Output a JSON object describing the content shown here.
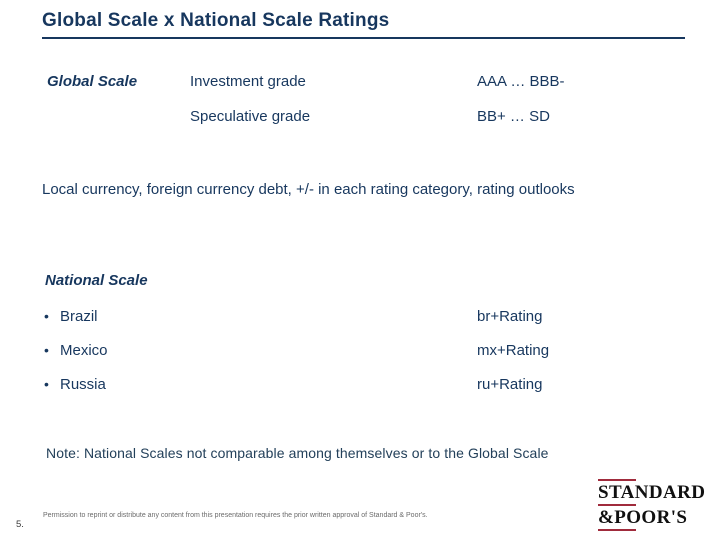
{
  "title": "Global Scale x National Scale Ratings",
  "bullet": "•",
  "global_scale": {
    "label": "Global Scale",
    "rows": [
      {
        "grade": "Investment grade",
        "range": "AAA … BBB-"
      },
      {
        "grade": "Speculative grade",
        "range": "BB+ … SD"
      }
    ]
  },
  "paragraph": "Local currency, foreign currency debt, +/- in each rating category, rating outlooks",
  "national_scale": {
    "label": "National Scale",
    "items": [
      {
        "country": "Brazil",
        "rating": "br+Rating"
      },
      {
        "country": "Mexico",
        "rating": "mx+Rating"
      },
      {
        "country": "Russia",
        "rating": "ru+Rating"
      }
    ]
  },
  "note": "Note: National Scales not comparable among themselves or to the Global Scale",
  "footer": {
    "page_number": "5.",
    "disclaimer": "Permission to reprint or distribute any content from this presentation requires the prior written approval of Standard & Poor's."
  },
  "logo": {
    "line1": "STANDARD",
    "line2": "&POOR'S"
  },
  "colors": {
    "text_navy": "#17375E",
    "rule_navy": "#17375E",
    "logo_red": "#A02B3C",
    "logo_black": "#101010",
    "footer_gray": "#6B6B6B"
  }
}
